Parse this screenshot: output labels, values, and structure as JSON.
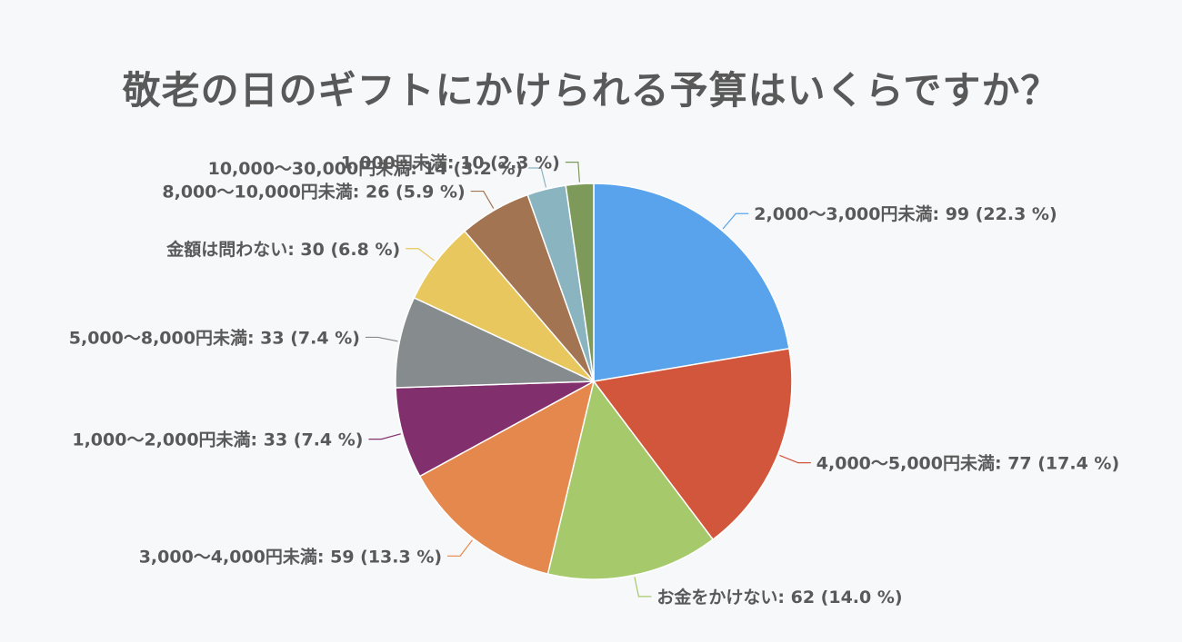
{
  "title": "敬老の日のギフトにかけられる予算はいくらですか？",
  "chart_data": {
    "type": "pie",
    "title": "敬老の日のギフトにかけられる予算はいくらですか？",
    "slices": [
      {
        "name": "2,000〜3,000円未満",
        "value": 99,
        "percent": 22.3,
        "color": "#58a3ec",
        "label": "2,000〜3,000円未満: 99 (22.3 %)"
      },
      {
        "name": "4,000〜5,000円未満",
        "value": 77,
        "percent": 17.4,
        "color": "#d1563c",
        "label": "4,000〜5,000円未満: 77 (17.4 %)"
      },
      {
        "name": "お金をかけない",
        "value": 62,
        "percent": 14.0,
        "color": "#a5c96b",
        "label": "お金をかけない: 62 (14.0 %)"
      },
      {
        "name": "3,000〜4,000円未満",
        "value": 59,
        "percent": 13.3,
        "color": "#e5884d",
        "label": "3,000〜4,000円未満: 59 (13.3 %)"
      },
      {
        "name": "1,000〜2,000円未満",
        "value": 33,
        "percent": 7.4,
        "color": "#82306d",
        "label": "1,000〜2,000円未満: 33 (7.4 %)"
      },
      {
        "name": "5,000〜8,000円未満",
        "value": 33,
        "percent": 7.4,
        "color": "#868b8e",
        "label": "5,000〜8,000円未満: 33 (7.4 %)"
      },
      {
        "name": "金額は問わない",
        "value": 30,
        "percent": 6.8,
        "color": "#e8c75e",
        "label": "金額は問わない: 30 (6.8 %)"
      },
      {
        "name": "8,000〜10,000円未満",
        "value": 26,
        "percent": 5.9,
        "color": "#a27452",
        "label": "8,000〜10,000円未満: 26 (5.9 %)"
      },
      {
        "name": "10,000〜30,000円未満",
        "value": 14,
        "percent": 3.2,
        "color": "#8ab4c0",
        "label": "10,000〜30,000円未満: 14 (3.2 %)"
      },
      {
        "name": "1,000円未満",
        "value": 10,
        "percent": 2.3,
        "color": "#7e9a5b",
        "label": "1,000円未満: 10 (2.3 %)"
      }
    ]
  }
}
